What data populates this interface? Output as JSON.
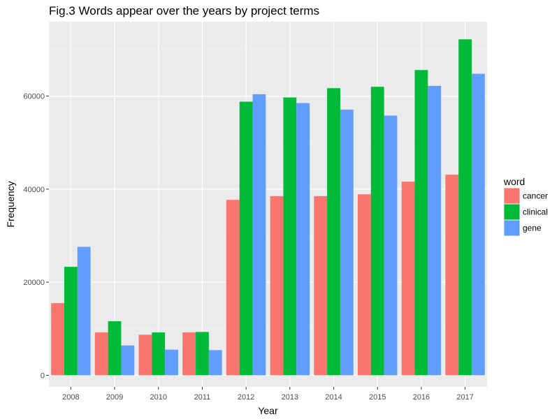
{
  "chart_data": {
    "type": "bar",
    "title": "Fig.3 Words appear over the years by project terms",
    "xlabel": "Year",
    "ylabel": "Frequency",
    "categories": [
      "2008",
      "2009",
      "2010",
      "2011",
      "2012",
      "2013",
      "2014",
      "2015",
      "2016",
      "2017"
    ],
    "series": [
      {
        "name": "cancer",
        "color": "#F8766D",
        "values": [
          15500,
          9200,
          8700,
          9200,
          37700,
          38500,
          38500,
          38900,
          41600,
          43100
        ]
      },
      {
        "name": "clinical",
        "color": "#00BA38",
        "values": [
          23300,
          11600,
          9200,
          9300,
          58800,
          59700,
          61700,
          62000,
          65600,
          72200
        ]
      },
      {
        "name": "gene",
        "color": "#619CFF",
        "values": [
          27600,
          6400,
          5500,
          5400,
          60400,
          58500,
          57100,
          55800,
          62200,
          64800
        ]
      }
    ],
    "ylim": [
      -2500,
      76000
    ],
    "yticks": [
      0,
      20000,
      40000,
      60000
    ],
    "ytick_labels": [
      "0",
      "20000",
      "40000",
      "60000"
    ],
    "grid": true,
    "legend": {
      "title": "word",
      "placement": "right"
    }
  }
}
